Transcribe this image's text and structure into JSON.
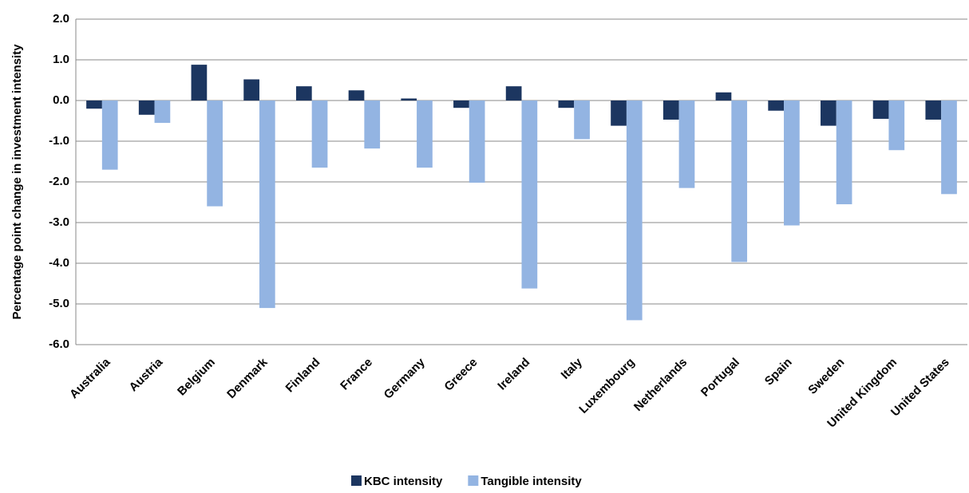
{
  "chart_data": {
    "type": "bar",
    "y_label": "Percentage point change in investment intensity",
    "categories": [
      "Australia",
      "Austria",
      "Belgium",
      "Denmark",
      "Finland",
      "France",
      "Germany",
      "Greece",
      "Ireland",
      "Italy",
      "Luxembourg",
      "Netherlands",
      "Portugal",
      "Spain",
      "Sweden",
      "United Kingdom",
      "United States"
    ],
    "series": [
      {
        "name": "KBC intensity",
        "color": "#1c3660",
        "values": [
          -0.2,
          -0.35,
          0.88,
          0.52,
          0.35,
          0.25,
          0.05,
          -0.18,
          0.35,
          -0.18,
          -0.62,
          -0.47,
          0.2,
          -0.25,
          -0.62,
          -0.45,
          -0.47
        ]
      },
      {
        "name": "Tangible intensity",
        "color": "#93b4e2",
        "values": [
          -1.7,
          -0.55,
          -2.6,
          -5.1,
          -1.65,
          -1.18,
          -1.65,
          -2.02,
          -4.62,
          -0.95,
          -5.4,
          -2.15,
          -3.97,
          -3.07,
          -2.55,
          -1.22,
          -2.3
        ]
      }
    ],
    "ylim": [
      -6,
      2
    ],
    "yticks": [
      {
        "value": -6,
        "label": "-6.0"
      },
      {
        "value": -5,
        "label": "-5.0"
      },
      {
        "value": -4,
        "label": "-4.0"
      },
      {
        "value": -3,
        "label": "-3.0"
      },
      {
        "value": -2,
        "label": "-2.0"
      },
      {
        "value": -1,
        "label": "-1.0"
      },
      {
        "value": 0,
        "label": "0.0"
      },
      {
        "value": 1,
        "label": "1.0"
      },
      {
        "value": 2,
        "label": "2.0"
      }
    ],
    "grid": true,
    "legend": "bottom"
  }
}
